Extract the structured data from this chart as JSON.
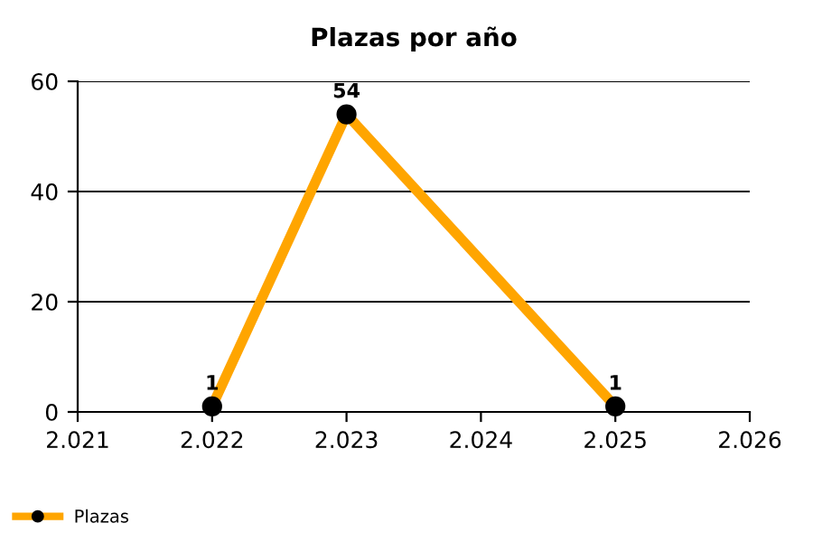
{
  "chart_data": {
    "type": "line",
    "title": "Plazas por año",
    "x": [
      2022,
      2023,
      2025
    ],
    "series": [
      {
        "name": "Plazas",
        "color": "#ffa500",
        "values": [
          1,
          54,
          1
        ]
      }
    ],
    "xlim": [
      2021,
      2026
    ],
    "xticks": [
      {
        "value": 2021,
        "label": "2.021"
      },
      {
        "value": 2022,
        "label": "2.022"
      },
      {
        "value": 2023,
        "label": "2.023"
      },
      {
        "value": 2024,
        "label": "2.024"
      },
      {
        "value": 2025,
        "label": "2.025"
      },
      {
        "value": 2026,
        "label": "2.026"
      }
    ],
    "ylim": [
      0,
      60
    ],
    "yticks": [
      0,
      20,
      40,
      60
    ],
    "grid": "y",
    "legend": "bottom left",
    "marker": "circle",
    "line_style": "solid",
    "data_labels": true
  }
}
